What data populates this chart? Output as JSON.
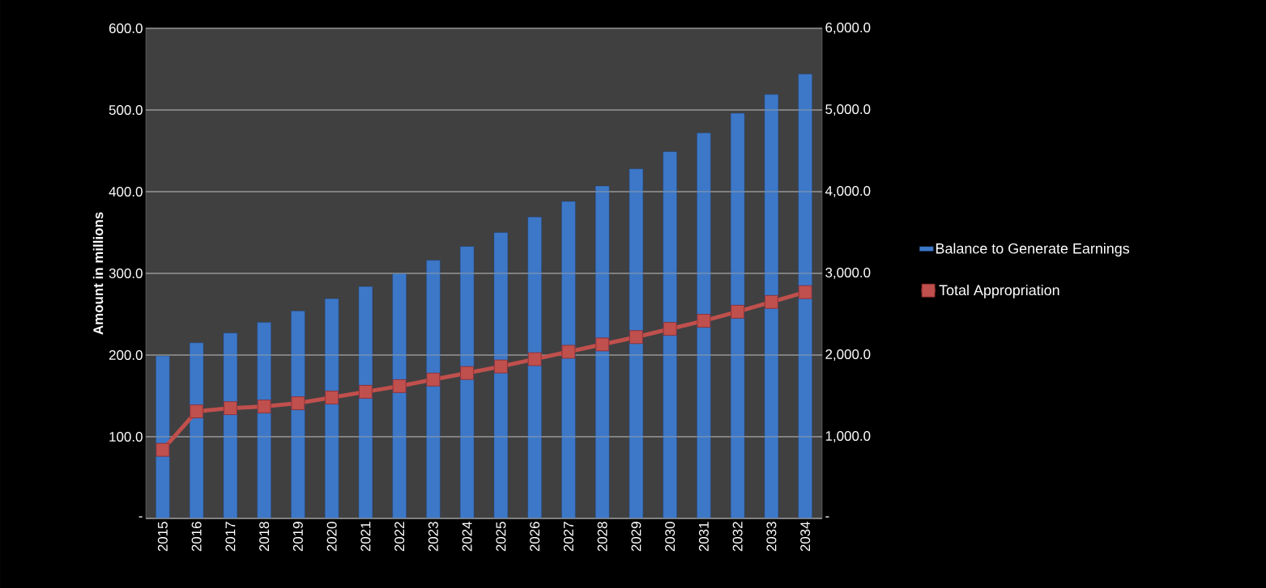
{
  "chart_data": {
    "type": "bar",
    "ylabel": "Amount in millions",
    "categories": [
      "2015",
      "2016",
      "2017",
      "2018",
      "2019",
      "2020",
      "2021",
      "2022",
      "2023",
      "2024",
      "2025",
      "2026",
      "2027",
      "2028",
      "2029",
      "2030",
      "2031",
      "2032",
      "2033",
      "2034"
    ],
    "series": [
      {
        "name": "Balance to Generate Earnings",
        "axis": "y2",
        "color": "#3d78c8",
        "values": [
          1990,
          2150,
          2270,
          2400,
          2540,
          2690,
          2840,
          3000,
          3160,
          3330,
          3500,
          3690,
          3880,
          4070,
          4280,
          4490,
          4720,
          4960,
          5190,
          5440
        ]
      },
      {
        "name": "Total Appropriation",
        "type": "line",
        "color": "#c0504d",
        "values": [
          84,
          131,
          135,
          137,
          141,
          148,
          155,
          162,
          170,
          178,
          186,
          195,
          204,
          213,
          222,
          232,
          242,
          253,
          265,
          277
        ]
      }
    ],
    "ylim": [
      0,
      600
    ],
    "yticks": [
      {
        "value": 0,
        "label": "-"
      },
      {
        "value": 100,
        "label": "100.0"
      },
      {
        "value": 200,
        "label": "200.0"
      },
      {
        "value": 300,
        "label": "300.0"
      },
      {
        "value": 400,
        "label": "400.0"
      },
      {
        "value": 500,
        "label": "500.0"
      },
      {
        "value": 600,
        "label": "600.0"
      }
    ],
    "y2lim": [
      0,
      6000
    ],
    "y2ticks": [
      {
        "value": 0,
        "label": "-"
      },
      {
        "value": 1000,
        "label": "1,000.0"
      },
      {
        "value": 2000,
        "label": "2,000.0"
      },
      {
        "value": 3000,
        "label": "3,000.0"
      },
      {
        "value": 4000,
        "label": "4,000.0"
      },
      {
        "value": 5000,
        "label": "5,000.0"
      },
      {
        "value": 6000,
        "label": "6,000.0"
      }
    ],
    "grid": "y",
    "legend": "right",
    "marker": "square",
    "line_style": "solid"
  }
}
